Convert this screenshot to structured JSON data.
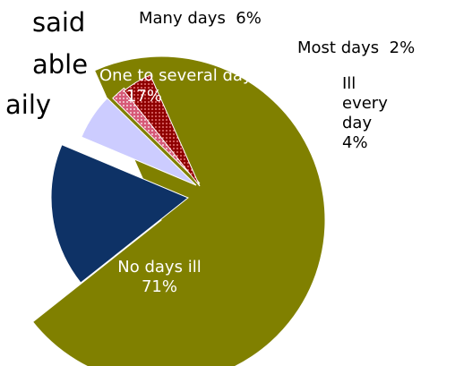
{
  "title_fragments": [
    "said",
    "able",
    "aily"
  ],
  "chart_data": {
    "type": "pie",
    "exploded": true,
    "slices": [
      {
        "label": "No days ill",
        "value": 71,
        "pct_text": "71%",
        "color": "#808000",
        "label_inside": true
      },
      {
        "label": "One to several days",
        "value": 17,
        "pct_text": "17%",
        "color": "#0e3266",
        "label_inside": true
      },
      {
        "label": "Many days",
        "value": 6,
        "pct_text": "6%",
        "color": "#ccccff",
        "label_inside": false
      },
      {
        "label": "Most days",
        "value": 2,
        "pct_text": "2%",
        "color": "#d04060",
        "label_inside": false
      },
      {
        "label": "Ill every day",
        "value": 4,
        "pct_text": "4%",
        "color": "#990000",
        "label_inside": false
      }
    ]
  }
}
